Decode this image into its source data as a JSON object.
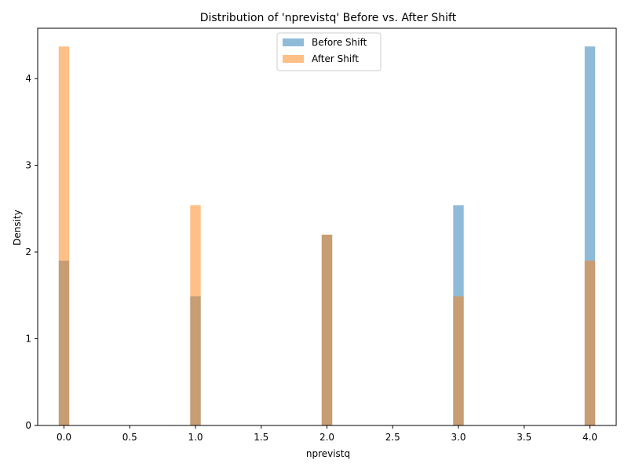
{
  "chart_data": {
    "type": "bar",
    "title": "Distribution of 'nprevistq' Before vs. After Shift",
    "xlabel": "nprevistq",
    "ylabel": "Density",
    "xlim": [
      -0.2,
      4.2
    ],
    "ylim": [
      0,
      4.58
    ],
    "xticks": [
      "0.0",
      "0.5",
      "1.0",
      "1.5",
      "2.0",
      "2.5",
      "3.0",
      "3.5",
      "4.0"
    ],
    "yticks": [
      "0",
      "1",
      "2",
      "3",
      "4"
    ],
    "bin_width": 0.08,
    "legend_position": "top-center",
    "series": [
      {
        "name": "Before Shift",
        "color": "#1f77b4",
        "alpha": 0.5,
        "bins": [
          {
            "x": 0,
            "density": 1.9
          },
          {
            "x": 1,
            "density": 1.49
          },
          {
            "x": 2,
            "density": 2.2
          },
          {
            "x": 3,
            "density": 2.54
          },
          {
            "x": 4,
            "density": 4.37
          }
        ]
      },
      {
        "name": "After Shift",
        "color": "#ff7f0e",
        "alpha": 0.5,
        "bins": [
          {
            "x": 0,
            "density": 4.37
          },
          {
            "x": 1,
            "density": 2.54
          },
          {
            "x": 2,
            "density": 2.2
          },
          {
            "x": 3,
            "density": 1.49
          },
          {
            "x": 4,
            "density": 1.9
          }
        ]
      }
    ]
  }
}
